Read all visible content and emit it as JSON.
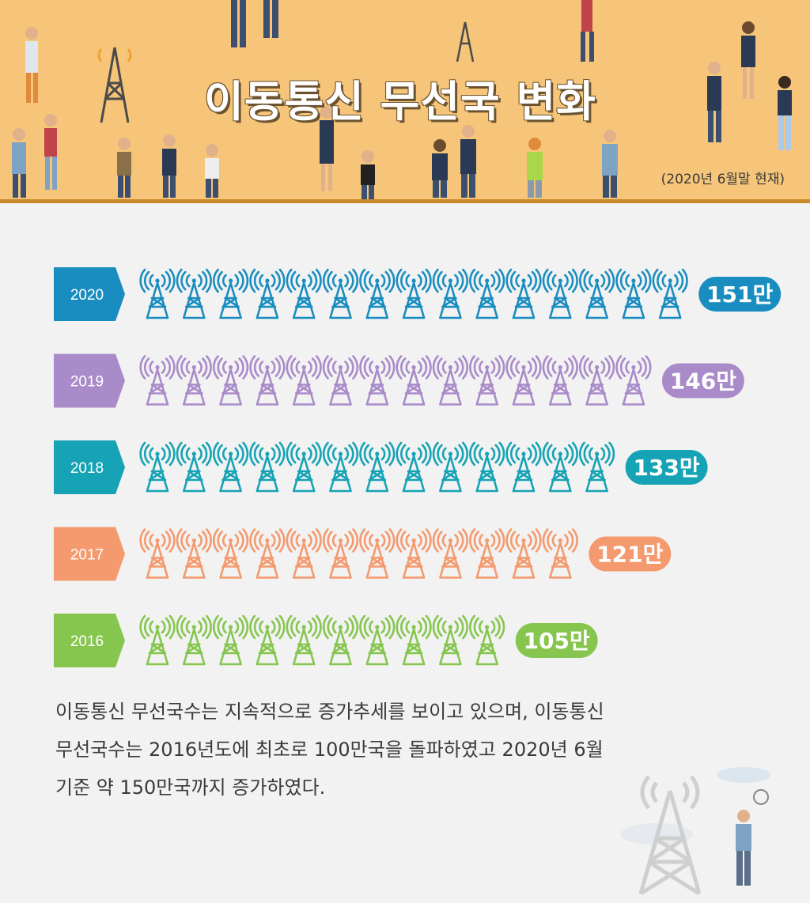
{
  "header": {
    "title": "이동통신 무선국 변화",
    "date_note": "(2020년 6월말 현재)"
  },
  "chart_data": {
    "type": "bar",
    "orientation": "horizontal-pictogram",
    "title": "이동통신 무선국 변화",
    "categories": [
      "2020",
      "2019",
      "2018",
      "2017",
      "2016"
    ],
    "values": [
      151,
      146,
      133,
      121,
      105
    ],
    "value_labels": [
      "151만",
      "146만",
      "133만",
      "121만",
      "105만"
    ],
    "icon_counts": [
      15,
      14,
      13,
      12,
      10
    ],
    "colors": [
      "#1a8dc0",
      "#a98bc9",
      "#15a3b5",
      "#f49a6e",
      "#86c64f"
    ],
    "unit": "만"
  },
  "description": {
    "line1": "이동통신 무선국수는 지속적으로 증가추세를 보이고 있으며, 이동통신",
    "line2": "무선국수는 2016년도에 최초로 100만국을 돌파하였고 2020년 6월",
    "line3": "기준 약 150만국까지 증가하였다."
  }
}
